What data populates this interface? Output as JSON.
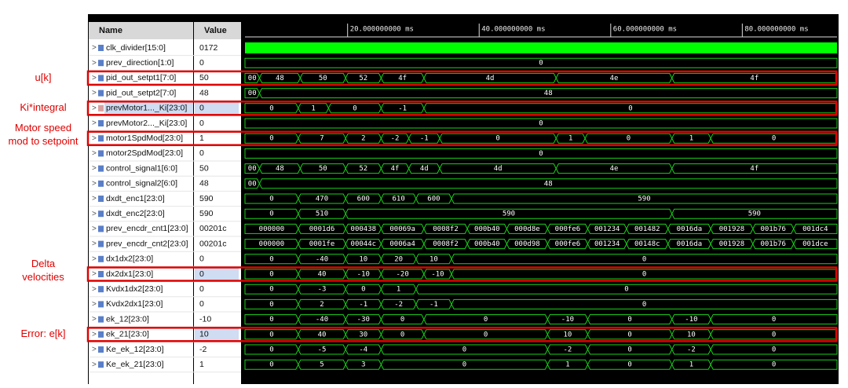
{
  "header": {
    "name": "Name",
    "value": "Value"
  },
  "timeline": {
    "xlim": [
      4.4,
      94.4
    ],
    "xticks": [
      {
        "value": 20,
        "label": "20.000000000 ms"
      },
      {
        "value": 40,
        "label": "40.000000000 ms"
      },
      {
        "value": 60,
        "label": "60.000000000 ms"
      },
      {
        "value": 80,
        "label": "80.000000000 ms"
      }
    ]
  },
  "signals": [
    {
      "name": "clk_divider[15:0]",
      "value": "0172",
      "waveform": "clock",
      "segments": []
    },
    {
      "name": "prev_direction[1:0]",
      "value": "0",
      "segments": [
        {
          "label": "0"
        }
      ]
    },
    {
      "name": "pid_out_setpt1[7:0]",
      "value": "50",
      "annotation": [
        "u[k]"
      ],
      "segments": [
        {
          "label": "00"
        },
        {
          "t": 6.6,
          "label": "48"
        },
        {
          "t": 12.8,
          "label": "50"
        },
        {
          "t": 19.7,
          "label": "52"
        },
        {
          "t": 25.1,
          "label": "4f"
        },
        {
          "t": 31.6,
          "label": "4d"
        },
        {
          "t": 51.7,
          "label": "4e"
        },
        {
          "t": 69.3,
          "label": "4f"
        }
      ]
    },
    {
      "name": "pid_out_setpt2[7:0]",
      "value": "48",
      "segments": [
        {
          "label": "00"
        },
        {
          "t": 6.6,
          "label": "48"
        }
      ]
    },
    {
      "name": "prevMotor1..._Ki[23:0]",
      "value": "0",
      "selected": true,
      "annotation": [
        "Ki*integral"
      ],
      "segments": [
        {
          "label": "0"
        },
        {
          "t": 12.5,
          "label": "1"
        },
        {
          "t": 17.1,
          "label": "0"
        },
        {
          "t": 25.1,
          "label": "-1"
        },
        {
          "t": 31.6,
          "label": "0"
        }
      ]
    },
    {
      "name": "prevMotor2..._Ki[23:0]",
      "value": "0",
      "segments": [
        {
          "label": "0"
        }
      ]
    },
    {
      "name": "motor1SpdMod[23:0]",
      "value": "1",
      "annotation": [
        "Motor speed",
        "mod to setpoint"
      ],
      "segments": [
        {
          "label": "0"
        },
        {
          "t": 12.5,
          "label": "7"
        },
        {
          "t": 19.7,
          "label": "2"
        },
        {
          "t": 25.1,
          "label": "-2"
        },
        {
          "t": 29.3,
          "label": "-1"
        },
        {
          "t": 34.0,
          "label": "0"
        },
        {
          "t": 51.7,
          "label": "1"
        },
        {
          "t": 56.1,
          "label": "0"
        },
        {
          "t": 69.3,
          "label": "1"
        },
        {
          "t": 75.2,
          "label": "0"
        }
      ]
    },
    {
      "name": "motor2SpdMod[23:0]",
      "value": "0",
      "segments": [
        {
          "label": "0"
        }
      ]
    },
    {
      "name": "control_signal1[6:0]",
      "value": "50",
      "segments": [
        {
          "label": "00"
        },
        {
          "t": 6.6,
          "label": "48"
        },
        {
          "t": 12.8,
          "label": "50"
        },
        {
          "t": 19.7,
          "label": "52"
        },
        {
          "t": 25.1,
          "label": "4f"
        },
        {
          "t": 29.3,
          "label": "4d"
        },
        {
          "t": 34.0,
          "label": "4d"
        },
        {
          "t": 51.7,
          "label": "4e"
        },
        {
          "t": 69.3,
          "label": "4f"
        }
      ]
    },
    {
      "name": "control_signal2[6:0]",
      "value": "48",
      "segments": [
        {
          "label": "00"
        },
        {
          "t": 6.6,
          "label": "48"
        }
      ]
    },
    {
      "name": "dxdt_enc1[23:0]",
      "value": "590",
      "segments": [
        {
          "label": "0"
        },
        {
          "t": 12.5,
          "label": "470"
        },
        {
          "t": 19.7,
          "label": "600"
        },
        {
          "t": 25.1,
          "label": "610"
        },
        {
          "t": 30.4,
          "label": "600"
        },
        {
          "t": 35.8,
          "label": "590"
        }
      ]
    },
    {
      "name": "dxdt_enc2[23:0]",
      "value": "590",
      "segments": [
        {
          "label": "0"
        },
        {
          "t": 12.5,
          "label": "510"
        },
        {
          "t": 19.7,
          "label": "590"
        },
        {
          "t": 69.3,
          "label": "590"
        }
      ]
    },
    {
      "name": "prev_encdr_cnt1[23:0]",
      "value": "00201c",
      "segments": [
        {
          "label": "000000"
        },
        {
          "t": 12.5,
          "label": "0001d6"
        },
        {
          "t": 19.7,
          "label": "000438"
        },
        {
          "t": 25.1,
          "label": "00069a"
        },
        {
          "t": 31.6,
          "label": "0008f2"
        },
        {
          "t": 38.2,
          "label": "000b40"
        },
        {
          "t": 44.2,
          "label": "000d8e"
        },
        {
          "t": 50.4,
          "label": "000fe6"
        },
        {
          "t": 56.5,
          "label": "001234"
        },
        {
          "t": 62.4,
          "label": "001482"
        },
        {
          "t": 68.7,
          "label": "0016da"
        },
        {
          "t": 75.2,
          "label": "001928"
        },
        {
          "t": 81.6,
          "label": "001b76"
        },
        {
          "t": 87.8,
          "label": "001dc4"
        }
      ]
    },
    {
      "name": "prev_encdr_cnt2[23:0]",
      "value": "00201c",
      "segments": [
        {
          "label": "000000"
        },
        {
          "t": 12.5,
          "label": "0001fe"
        },
        {
          "t": 19.7,
          "label": "00044c"
        },
        {
          "t": 25.1,
          "label": "0006a4"
        },
        {
          "t": 31.6,
          "label": "0008f2"
        },
        {
          "t": 38.2,
          "label": "000b40"
        },
        {
          "t": 44.2,
          "label": "000d98"
        },
        {
          "t": 50.4,
          "label": "000fe6"
        },
        {
          "t": 56.5,
          "label": "001234"
        },
        {
          "t": 62.4,
          "label": "00148c"
        },
        {
          "t": 68.7,
          "label": "0016da"
        },
        {
          "t": 75.2,
          "label": "001928"
        },
        {
          "t": 81.6,
          "label": "001b76"
        },
        {
          "t": 87.8,
          "label": "001dce"
        }
      ]
    },
    {
      "name": "dx1dx2[23:0]",
      "value": "0",
      "segments": [
        {
          "label": "0"
        },
        {
          "t": 12.5,
          "label": "-40"
        },
        {
          "t": 19.7,
          "label": "10"
        },
        {
          "t": 25.1,
          "label": "20"
        },
        {
          "t": 30.4,
          "label": "10"
        },
        {
          "t": 35.8,
          "label": "0"
        }
      ]
    },
    {
      "name": "dx2dx1[23:0]",
      "value": "0",
      "valueSelected": true,
      "annotation": [
        "Delta",
        "velocities"
      ],
      "segments": [
        {
          "label": "0"
        },
        {
          "t": 12.5,
          "label": "40"
        },
        {
          "t": 19.7,
          "label": "-10"
        },
        {
          "t": 25.1,
          "label": "-20"
        },
        {
          "t": 31.6,
          "label": "-10"
        },
        {
          "t": 35.8,
          "label": "0"
        }
      ]
    },
    {
      "name": "Kvdx1dx2[23:0]",
      "value": "0",
      "segments": [
        {
          "label": "0"
        },
        {
          "t": 12.5,
          "label": "-3"
        },
        {
          "t": 19.7,
          "label": "0"
        },
        {
          "t": 25.1,
          "label": "1"
        },
        {
          "t": 30.4,
          "label": "0"
        }
      ]
    },
    {
      "name": "Kvdx2dx1[23:0]",
      "value": "0",
      "segments": [
        {
          "label": "0"
        },
        {
          "t": 12.5,
          "label": "2"
        },
        {
          "t": 19.7,
          "label": "-1"
        },
        {
          "t": 25.1,
          "label": "-2"
        },
        {
          "t": 30.4,
          "label": "-1"
        },
        {
          "t": 35.8,
          "label": "0"
        }
      ]
    },
    {
      "name": "ek_12[23:0]",
      "value": "-10",
      "segments": [
        {
          "label": "0"
        },
        {
          "t": 12.5,
          "label": "-40"
        },
        {
          "t": 19.7,
          "label": "-30"
        },
        {
          "t": 25.1,
          "label": "0"
        },
        {
          "t": 31.6,
          "label": "0"
        },
        {
          "t": 50.4,
          "label": "-10"
        },
        {
          "t": 56.5,
          "label": "0"
        },
        {
          "t": 69.3,
          "label": "-10"
        },
        {
          "t": 75.2,
          "label": "0"
        }
      ]
    },
    {
      "name": "ek_21[23:0]",
      "value": "10",
      "valueSelected": true,
      "annotation": [
        "Error: e[k]"
      ],
      "segments": [
        {
          "label": "0"
        },
        {
          "t": 12.5,
          "label": "40"
        },
        {
          "t": 19.7,
          "label": "30"
        },
        {
          "t": 25.1,
          "label": "0"
        },
        {
          "t": 31.6,
          "label": "0"
        },
        {
          "t": 50.4,
          "label": "10"
        },
        {
          "t": 56.5,
          "label": "0"
        },
        {
          "t": 69.3,
          "label": "10"
        },
        {
          "t": 75.2,
          "label": "0"
        }
      ]
    },
    {
      "name": "Ke_ek_12[23:0]",
      "value": "-2",
      "segments": [
        {
          "label": "0"
        },
        {
          "t": 12.5,
          "label": "-5"
        },
        {
          "t": 19.7,
          "label": "-4"
        },
        {
          "t": 25.1,
          "label": "0"
        },
        {
          "t": 50.4,
          "label": "-2"
        },
        {
          "t": 56.5,
          "label": "0"
        },
        {
          "t": 69.3,
          "label": "-2"
        },
        {
          "t": 75.2,
          "label": "0"
        }
      ]
    },
    {
      "name": "Ke_ek_21[23:0]",
      "value": "1",
      "segments": [
        {
          "label": "0"
        },
        {
          "t": 12.5,
          "label": "5"
        },
        {
          "t": 19.7,
          "label": "3"
        },
        {
          "t": 25.1,
          "label": "0"
        },
        {
          "t": 50.4,
          "label": "1"
        },
        {
          "t": 56.5,
          "label": "0"
        },
        {
          "t": 69.3,
          "label": "1"
        },
        {
          "t": 75.2,
          "label": "0"
        }
      ]
    }
  ]
}
